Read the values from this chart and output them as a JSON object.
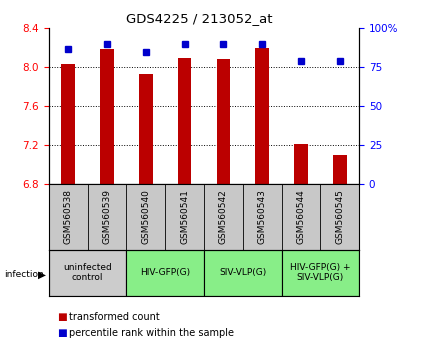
{
  "title": "GDS4225 / 213052_at",
  "samples": [
    "GSM560538",
    "GSM560539",
    "GSM560540",
    "GSM560541",
    "GSM560542",
    "GSM560543",
    "GSM560544",
    "GSM560545"
  ],
  "red_values": [
    8.03,
    8.19,
    7.93,
    8.09,
    8.08,
    8.2,
    7.21,
    7.1
  ],
  "blue_values": [
    87,
    90,
    85,
    90,
    90,
    90,
    79,
    79
  ],
  "ylim_left": [
    6.8,
    8.4
  ],
  "ylim_right": [
    0,
    100
  ],
  "yticks_left": [
    6.8,
    7.2,
    7.6,
    8.0,
    8.4
  ],
  "yticks_right": [
    0,
    25,
    50,
    75,
    100
  ],
  "ytick_right_labels": [
    "0",
    "25",
    "50",
    "75",
    "100%"
  ],
  "groups": [
    {
      "label": "uninfected\ncontrol",
      "start": 0,
      "end": 2,
      "color": "#cccccc"
    },
    {
      "label": "HIV-GFP(G)",
      "start": 2,
      "end": 4,
      "color": "#88ee88"
    },
    {
      "label": "SIV-VLP(G)",
      "start": 4,
      "end": 6,
      "color": "#88ee88"
    },
    {
      "label": "HIV-GFP(G) +\nSIV-VLP(G)",
      "start": 6,
      "end": 8,
      "color": "#88ee88"
    }
  ],
  "bar_color": "#bb0000",
  "dot_color": "#0000cc",
  "bar_width": 0.35,
  "bg_sample": "#c8c8c8",
  "sample_label_fontsize": 6.5,
  "group_label_fontsize": 6.5,
  "title_fontsize": 9.5,
  "legend_fontsize": 7,
  "tick_fontsize": 7.5,
  "dotted_lines": [
    8.0,
    7.6,
    7.2
  ]
}
